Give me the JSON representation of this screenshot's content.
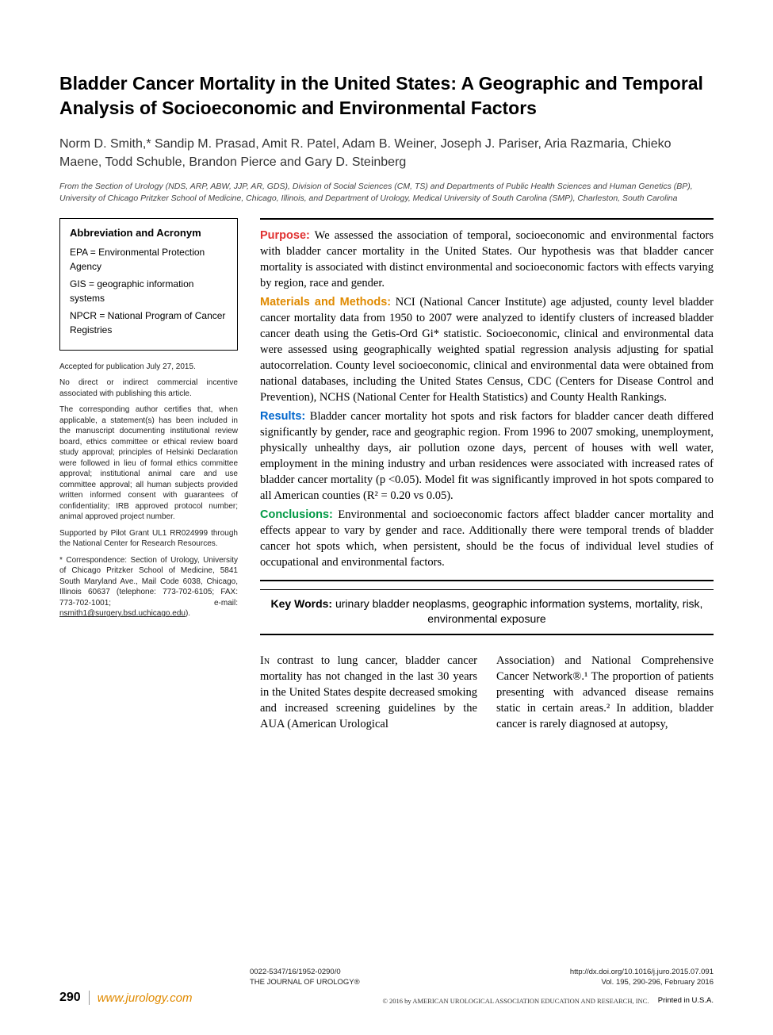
{
  "title": "Bladder Cancer Mortality in the United States: A Geographic and Temporal Analysis of Socioeconomic and Environmental Factors",
  "authors": "Norm D. Smith,* Sandip M. Prasad, Amit R. Patel, Adam B. Weiner, Joseph J. Pariser, Aria Razmaria, Chieko Maene, Todd Schuble, Brandon Pierce and Gary D. Steinberg",
  "affiliation": "From the Section of Urology (NDS, ARP, ABW, JJP, AR, GDS), Division of Social Sciences (CM, TS) and Departments of Public Health Sciences and Human Genetics (BP), University of Chicago Pritzker School of Medicine, Chicago, Illinois, and Department of Urology, Medical University of South Carolina (SMP), Charleston, South Carolina",
  "abbrev": {
    "title": "Abbreviation and Acronym",
    "items": [
      "EPA = Environmental Protection Agency",
      "GIS = geographic information systems",
      "NPCR = National Program of Cancer Registries"
    ]
  },
  "sidebar": {
    "accepted": "Accepted for publication July 27, 2015.",
    "incentive": "No direct or indirect commercial incentive associated with publishing this article.",
    "ethics": "The corresponding author certifies that, when applicable, a statement(s) has been included in the manuscript documenting institutional review board, ethics committee or ethical review board study approval; principles of Helsinki Declaration were followed in lieu of formal ethics committee approval; institutional animal care and use committee approval; all human subjects provided written informed consent with guarantees of confidentiality; IRB approved protocol number; animal approved project number.",
    "support": "Supported by Pilot Grant UL1 RR024999 through the National Center for Research Resources.",
    "correspondence": "* Correspondence: Section of Urology, University of Chicago Pritzker School of Medicine, 5841 South Maryland Ave., Mail Code 6038, Chicago, Illinois 60637 (telephone: 773-702-6105; FAX: 773-702-1001; e-mail: ",
    "email": "nsmith1@surgery.bsd.uchicago.edu",
    "corr_end": ")."
  },
  "abstract": {
    "purpose_label": "Purpose:",
    "purpose": " We assessed the association of temporal, socioeconomic and environmental factors with bladder cancer mortality in the United States. Our hypothesis was that bladder cancer mortality is associated with distinct environmental and socioeconomic factors with effects varying by region, race and gender.",
    "methods_label": "Materials and Methods:",
    "methods": " NCI (National Cancer Institute) age adjusted, county level bladder cancer mortality data from 1950 to 2007 were analyzed to identify clusters of increased bladder cancer death using the Getis-Ord Gi* statistic. Socioeconomic, clinical and environmental data were assessed using geographically weighted spatial regression analysis adjusting for spatial autocorrelation. County level socioeconomic, clinical and environmental data were obtained from national databases, including the United States Census, CDC (Centers for Disease Control and Prevention), NCHS (National Center for Health Statistics) and County Health Rankings.",
    "results_label": "Results:",
    "results": " Bladder cancer mortality hot spots and risk factors for bladder cancer death differed significantly by gender, race and geographic region. From 1996 to 2007 smoking, unemployment, physically unhealthy days, air pollution ozone days, percent of houses with well water, employment in the mining industry and urban residences were associated with increased rates of bladder cancer mortality (p <0.05). Model fit was significantly improved in hot spots compared to all American counties (R² = 0.20 vs 0.05).",
    "conclusions_label": "Conclusions:",
    "conclusions": " Environmental and socioeconomic factors affect bladder cancer mortality and effects appear to vary by gender and race. Additionally there were temporal trends of bladder cancer hot spots which, when persistent, should be the focus of individual level studies of occupational and environmental factors."
  },
  "keywords": {
    "label": "Key Words:",
    "text": " urinary bladder neoplasms, geographic information systems, mortality, risk, environmental exposure"
  },
  "body": {
    "col1_lead": "In",
    "col1": " contrast to lung cancer, bladder cancer mortality has not changed in the last 30 years in the United States despite decreased smoking and increased screening guidelines by the AUA (American Urological",
    "col2": "Association) and National Comprehensive Cancer Network®.¹ The proportion of patients presenting with advanced disease remains static in certain areas.² In addition, bladder cancer is rarely diagnosed at autopsy,"
  },
  "footer": {
    "issn": "0022-5347/16/1952-0290/0",
    "journal": "THE JOURNAL OF UROLOGY®",
    "copyright": "© 2016 by AMERICAN UROLOGICAL ASSOCIATION EDUCATION AND RESEARCH, INC.",
    "doi": "http://dx.doi.org/10.1016/j.juro.2015.07.091",
    "vol": "Vol. 195, 290-296, February 2016",
    "printed": "Printed in U.S.A.",
    "page": "290",
    "url": "www.jurology.com"
  },
  "colors": {
    "purpose": "#e03030",
    "methods": "#e08a00",
    "results": "#0066cc",
    "conclusions": "#009944",
    "url": "#e08a00"
  }
}
